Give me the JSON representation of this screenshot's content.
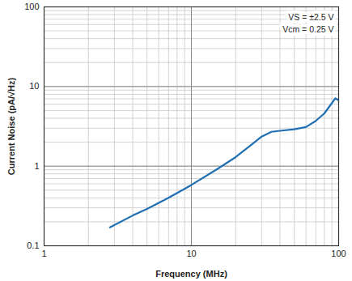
{
  "chart_data": {
    "type": "line",
    "x_label": "Frequency (MHz)",
    "y_label": "Current Noise (pA/√Hz)",
    "annotations": [
      "VS = ±2.5 V",
      "Vcm = 0.25 V"
    ],
    "log": true,
    "grid": true,
    "xlim": [
      1,
      100
    ],
    "xticks": [
      1,
      10,
      100
    ],
    "ylim": [
      0.1,
      100
    ],
    "yticks": [
      0.1,
      1,
      10,
      100
    ],
    "x": [
      2.8,
      4,
      5,
      7,
      10,
      15,
      20,
      25,
      30,
      35,
      40,
      50,
      60,
      70,
      80,
      90,
      95,
      100
    ],
    "series": [
      {
        "name": "Current Noise",
        "color": "#1f6fb2",
        "values": [
          0.17,
          0.24,
          0.29,
          0.4,
          0.58,
          0.92,
          1.3,
          1.8,
          2.35,
          2.7,
          2.78,
          2.9,
          3.1,
          3.7,
          4.6,
          6.2,
          7.1,
          6.7
        ]
      }
    ]
  }
}
